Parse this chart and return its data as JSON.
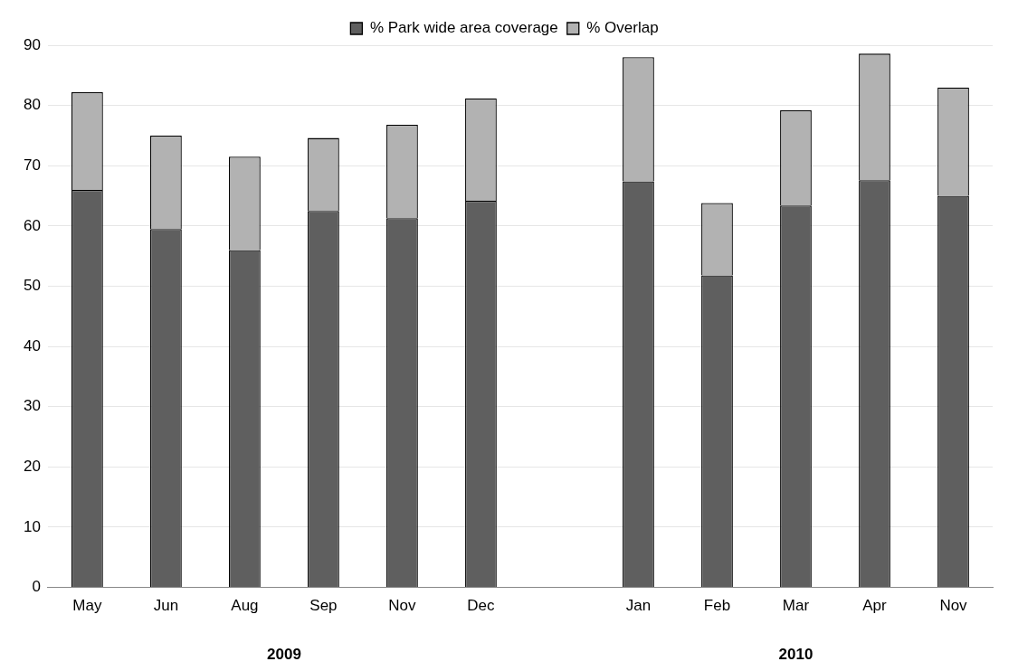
{
  "chart_data": {
    "type": "bar",
    "stacked": true,
    "categories": [
      "May",
      "Jun",
      "Aug",
      "Sep",
      "Nov",
      "Dec",
      null,
      "Jan",
      "Feb",
      "Mar",
      "Apr",
      "Nov"
    ],
    "series": [
      {
        "name": "% Park wide area coverage",
        "color": "#5f5f5f",
        "values": [
          66,
          59.5,
          56,
          62.5,
          61.3,
          64.2,
          null,
          67.4,
          51.8,
          63.4,
          67.6,
          65
        ]
      },
      {
        "name": "% Overlap",
        "color": "#b2b2b2",
        "values": [
          16.2,
          15.5,
          15.5,
          12.1,
          15.5,
          17,
          null,
          20.6,
          12,
          15.8,
          21,
          18
        ]
      }
    ],
    "ylim": [
      0,
      90
    ],
    "yticks": [
      0,
      10,
      20,
      30,
      40,
      50,
      60,
      70,
      80,
      90
    ],
    "grid": "y",
    "legend": "top",
    "annotations": [
      "2009",
      "2010"
    ]
  }
}
